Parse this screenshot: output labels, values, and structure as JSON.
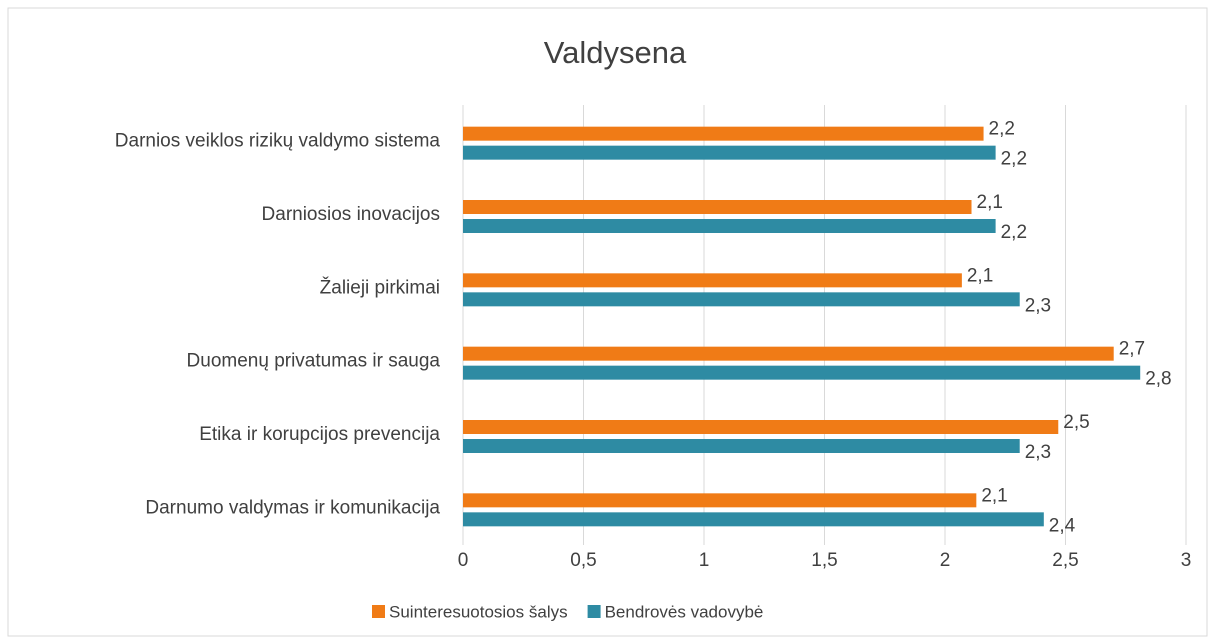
{
  "chart_data": {
    "type": "hbar",
    "title": "Valdysena",
    "categories": [
      "Darnios veiklos rizikų valdymo sistema",
      "Darniosios inovacijos",
      "Žalieji pirkimai",
      "Duomenų privatumas ir sauga",
      "Etika ir korupcijos prevencija",
      "Darnumo valdymas ir komunikacija"
    ],
    "series": [
      {
        "name": "Suinteresuotosios šalys",
        "color": "#f07b16",
        "values": [
          2.16,
          2.11,
          2.07,
          2.7,
          2.47,
          2.13
        ],
        "value_labels": [
          "2,2",
          "2,1",
          "2,1",
          "2,7",
          "2,5",
          "2,1"
        ]
      },
      {
        "name": "Bendrovės vadovybė",
        "color": "#2e8ba3",
        "values": [
          2.21,
          2.21,
          2.31,
          2.81,
          2.31,
          2.41
        ],
        "value_labels": [
          "2,2",
          "2,2",
          "2,3",
          "2,8",
          "2,3",
          "2,4"
        ]
      }
    ],
    "xlim": [
      0,
      3
    ],
    "xticks": [
      0,
      {
        "value": 0.5,
        "label": "0,5"
      },
      1,
      {
        "value": 1.5,
        "label": "1,5"
      },
      2,
      {
        "value": 2.5,
        "label": "2,5"
      },
      3
    ],
    "grid": true,
    "legend": "bottom"
  }
}
